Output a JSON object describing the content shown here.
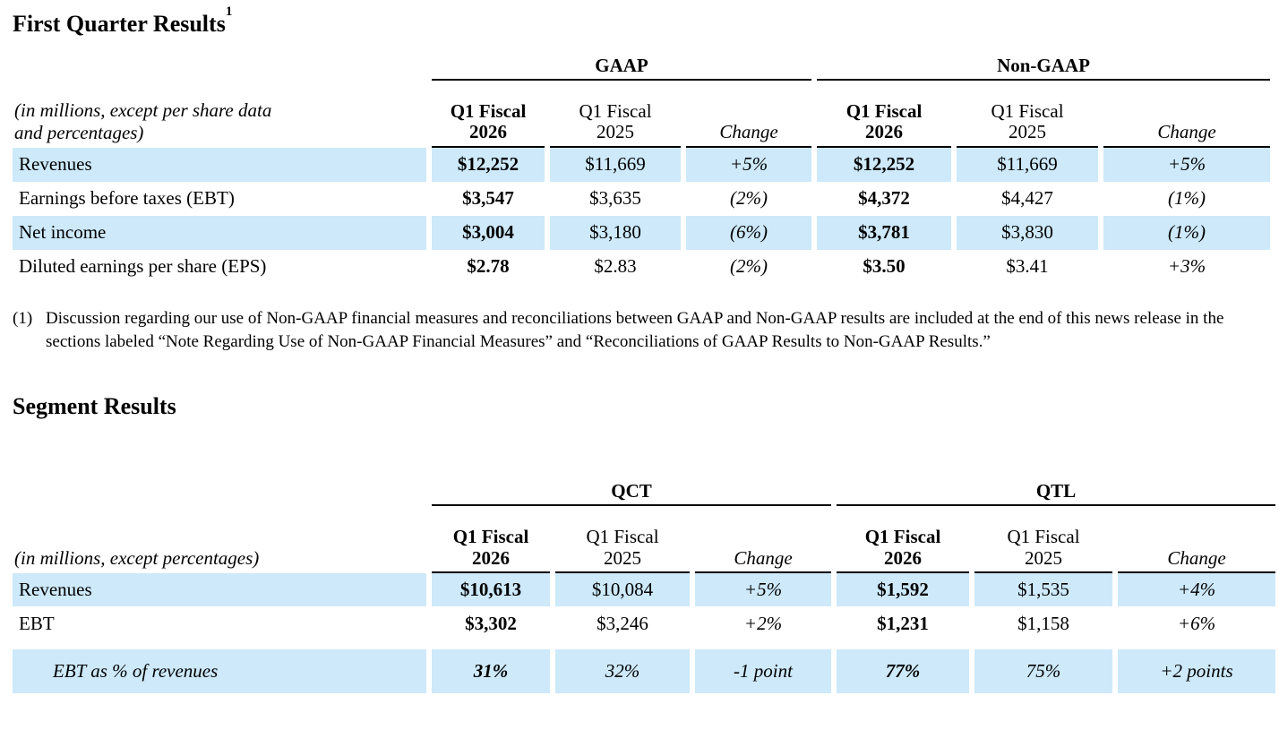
{
  "colors": {
    "row_highlight": "#cde9fa",
    "rule": "#000000"
  },
  "sections": {
    "first_quarter": {
      "title": "First Quarter Results",
      "footnote_marker": "1"
    },
    "segment": {
      "title": "Segment Results"
    }
  },
  "footnote": {
    "marker": "(1)",
    "text": "Discussion regarding our use of Non-GAAP financial measures and reconciliations between GAAP and Non-GAAP results are included at the end of this news release in the sections labeled “Note Regarding Use of Non-GAAP Financial Measures” and “Reconciliations of GAAP Results to Non-GAAP Results.”"
  },
  "table1": {
    "caption": {
      "line1": "(in millions, except per share data",
      "line2": "and percentages)"
    },
    "group_headers": [
      "GAAP",
      "Non-GAAP"
    ],
    "column_headers": [
      {
        "line1": "Q1 Fiscal",
        "line2": "2026"
      },
      {
        "line1": "Q1 Fiscal",
        "line2": "2025"
      },
      {
        "line1": "Change"
      }
    ],
    "rows": [
      {
        "label": "Revenues",
        "values": [
          "$12,252",
          "$11,669",
          "+5%",
          "$12,252",
          "$11,669",
          "+5%"
        ]
      },
      {
        "label": "Earnings before taxes (EBT)",
        "values": [
          "$3,547",
          "$3,635",
          "(2%)",
          "$4,372",
          "$4,427",
          "(1%)"
        ]
      },
      {
        "label": "Net income",
        "values": [
          "$3,004",
          "$3,180",
          "(6%)",
          "$3,781",
          "$3,830",
          "(1%)"
        ]
      },
      {
        "label": "Diluted earnings per share (EPS)",
        "values": [
          "$2.78",
          "$2.83",
          "(2%)",
          "$3.50",
          "$3.41",
          "+3%"
        ]
      }
    ]
  },
  "table2": {
    "caption": {
      "line1": "(in millions, except percentages)"
    },
    "group_headers": [
      "QCT",
      "QTL"
    ],
    "column_headers": [
      {
        "line1": "Q1 Fiscal",
        "line2": "2026"
      },
      {
        "line1": "Q1 Fiscal",
        "line2": "2025"
      },
      {
        "line1": "Change"
      }
    ],
    "rows": [
      {
        "label": "Revenues",
        "values": [
          "$10,613",
          "$10,084",
          "+5%",
          "$1,592",
          "$1,535",
          "+4%"
        ]
      },
      {
        "label": "EBT",
        "values": [
          "$3,302",
          "$3,246",
          "+2%",
          "$1,231",
          "$1,158",
          "+6%"
        ]
      },
      {
        "label": "EBT as % of revenues",
        "values": [
          "31%",
          "32%",
          "-1 point",
          "77%",
          "75%",
          "+2 points"
        ]
      }
    ]
  }
}
